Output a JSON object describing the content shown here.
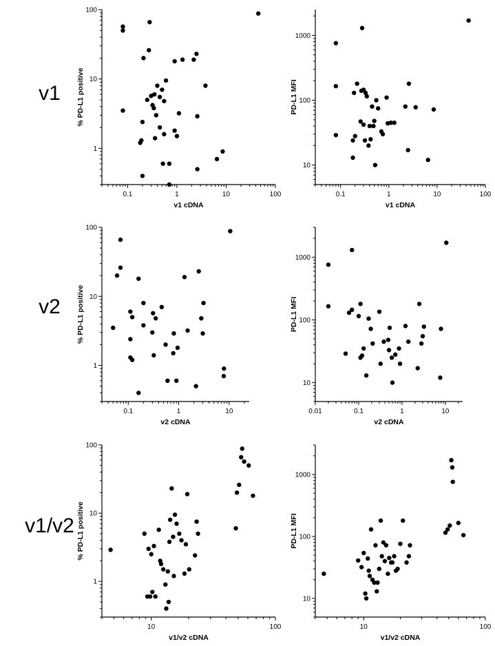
{
  "row_labels": [
    "v1",
    "v2",
    "v1/v2"
  ],
  "chart_data": [
    {
      "type": "scatter",
      "xlabel": "v1 cDNA",
      "ylabel": "% PD-L1 positive",
      "xscale": "log",
      "yscale": "log",
      "xlim": [
        0.03,
        100
      ],
      "ylim": [
        0.3,
        100
      ],
      "xticks": [
        0.1,
        1,
        10,
        100
      ],
      "xticklabels": [
        "0.1",
        "1",
        "10",
        "100"
      ],
      "yticks": [
        1,
        10,
        100
      ],
      "yticklabels": [
        "1",
        "10",
        "100"
      ],
      "x": [
        0.08,
        0.08,
        0.28,
        0.08,
        0.27,
        0.21,
        0.3,
        0.25,
        0.2,
        0.32,
        0.4,
        0.45,
        0.5,
        0.55,
        0.6,
        0.9,
        0.9,
        0.7,
        1.0,
        1.1,
        1.3,
        2.2,
        2.5,
        2.6,
        3.8,
        0.34,
        0.36,
        0.45,
        0.52,
        0.18,
        0.19,
        0.2,
        0.55,
        0.7,
        2.6,
        6.5,
        8.5,
        45,
        0.35,
        0.38
      ],
      "y": [
        57,
        50,
        66,
        3.5,
        26,
        20,
        5.7,
        5.0,
        2.4,
        4.2,
        8.0,
        5.5,
        7.0,
        4.8,
        9.5,
        18,
        1.8,
        0.6,
        1.5,
        3.2,
        19,
        19,
        23,
        2.9,
        8.0,
        3.8,
        1.4,
        2.0,
        0.6,
        1.2,
        1.3,
        0.4,
        1.6,
        0.3,
        0.5,
        0.7,
        0.9,
        88,
        6.0,
        3.0
      ]
    },
    {
      "type": "scatter",
      "xlabel": "v1 cDNA",
      "ylabel": "PD-L1 MFI",
      "xscale": "log",
      "yscale": "log",
      "xlim": [
        0.03,
        100
      ],
      "ylim": [
        5,
        2500
      ],
      "xticks": [
        0.1,
        1,
        10,
        100
      ],
      "xticklabels": [
        "0.1",
        "1",
        "10",
        "100"
      ],
      "yticks": [
        10,
        100,
        1000
      ],
      "yticklabels": [
        "10",
        "100",
        "1000"
      ],
      "x": [
        0.08,
        0.08,
        0.08,
        0.28,
        0.18,
        0.2,
        0.22,
        0.27,
        0.3,
        0.33,
        0.35,
        0.4,
        0.45,
        0.55,
        0.6,
        0.75,
        0.9,
        1.1,
        1.3,
        2.2,
        2.6,
        3.6,
        8.5,
        45,
        0.18,
        0.19,
        0.26,
        0.3,
        0.32,
        0.38,
        0.42,
        0.48,
        0.5,
        0.52,
        0.7,
        0.95,
        2.5,
        6.5
      ],
      "y": [
        760,
        165,
        29,
        1300,
        24,
        28,
        180,
        140,
        145,
        130,
        115,
        40,
        80,
        100,
        75,
        30,
        110,
        45,
        45,
        80,
        180,
        78,
        72,
        1700,
        13,
        130,
        47,
        42,
        24,
        20,
        25,
        40,
        48,
        10,
        33,
        44,
        17,
        12
      ]
    },
    {
      "type": "scatter",
      "xlabel": "v2 cDNA",
      "ylabel": "% PD-L1 positive",
      "xscale": "log",
      "yscale": "log",
      "xlim": [
        0.03,
        25
      ],
      "ylim": [
        0.3,
        100
      ],
      "xticks": [
        0.1,
        1,
        10
      ],
      "xticklabels": [
        "0.1",
        "1",
        "10"
      ],
      "yticks": [
        1,
        10,
        100
      ],
      "yticklabels": [
        "1",
        "10",
        "100"
      ],
      "x": [
        0.07,
        0.06,
        0.07,
        0.05,
        0.16,
        0.11,
        0.12,
        0.11,
        0.11,
        0.12,
        0.2,
        0.16,
        0.2,
        0.31,
        0.32,
        0.35,
        0.46,
        0.55,
        0.6,
        0.78,
        0.8,
        0.9,
        0.95,
        1.3,
        1.5,
        2.2,
        2.5,
        2.8,
        3.0,
        3.1,
        7.8,
        7.9,
        10.5,
        0.3
      ],
      "y": [
        66,
        20,
        26,
        3.5,
        18,
        6.0,
        5.0,
        2.4,
        1.3,
        1.2,
        8.0,
        0.4,
        3.8,
        5.7,
        1.4,
        4.8,
        7.0,
        2.0,
        0.6,
        1.5,
        2.9,
        0.6,
        1.8,
        19,
        3.2,
        0.5,
        23,
        4.8,
        2.9,
        8.0,
        0.7,
        0.9,
        88,
        3.0
      ]
    },
    {
      "type": "scatter",
      "xlabel": "v2 cDNA",
      "ylabel": "PD-L1 MFI",
      "xscale": "log",
      "yscale": "log",
      "xlim": [
        0.01,
        25
      ],
      "ylim": [
        5,
        3000
      ],
      "xticks": [
        0.01,
        0.1,
        1,
        10
      ],
      "xticklabels": [
        "0.01",
        "0.1",
        "1",
        "10"
      ],
      "yticks": [
        10,
        100,
        1000
      ],
      "yticklabels": [
        "10",
        "100",
        "1000"
      ],
      "x": [
        0.02,
        0.02,
        0.07,
        0.05,
        0.06,
        0.07,
        0.1,
        0.11,
        0.11,
        0.12,
        0.13,
        0.15,
        0.17,
        0.19,
        0.21,
        0.3,
        0.32,
        0.38,
        0.48,
        0.5,
        0.52,
        0.58,
        0.6,
        0.7,
        0.85,
        0.9,
        1.2,
        1.4,
        2.3,
        2.5,
        2.8,
        3.0,
        3.2,
        7.6,
        7.9,
        10.5
      ],
      "y": [
        760,
        165,
        1300,
        29,
        130,
        145,
        115,
        180,
        25,
        27,
        35,
        13,
        105,
        72,
        42,
        135,
        20,
        45,
        48,
        33,
        75,
        25,
        10,
        28,
        35,
        20,
        80,
        45,
        17,
        180,
        42,
        55,
        78,
        12,
        72,
        1700
      ]
    },
    {
      "type": "scatter",
      "xlabel": "v1/v2 cDNA",
      "ylabel": "% PD-L1 positive",
      "xscale": "log",
      "yscale": "log",
      "xlim": [
        4,
        100
      ],
      "ylim": [
        0.3,
        100
      ],
      "xticks": [
        10,
        100
      ],
      "xticklabels": [
        "10",
        "100"
      ],
      "yticks": [
        1,
        10,
        100
      ],
      "yticklabels": [
        "1",
        "10",
        "100"
      ],
      "x": [
        4.7,
        8.8,
        9.3,
        9.5,
        9.8,
        10.2,
        10.5,
        10.8,
        11.5,
        11.8,
        12.0,
        12.5,
        13.0,
        13.2,
        13.6,
        13.8,
        14.2,
        14.6,
        15.0,
        15.2,
        15.5,
        16.0,
        16.8,
        17.5,
        18.5,
        19.0,
        19.5,
        20.2,
        22.5,
        23.2,
        23.8,
        48.0,
        49.0,
        51.0,
        53.0,
        54.0,
        56.0,
        61.0,
        66.0,
        14.0,
        10.0
      ],
      "y": [
        2.9,
        5.0,
        0.6,
        3.0,
        0.6,
        0.7,
        3.3,
        0.6,
        5.7,
        2.0,
        1.8,
        1.5,
        0.9,
        0.4,
        1.4,
        0.5,
        8.0,
        23,
        4.5,
        1.2,
        9.5,
        7.0,
        5.0,
        4.0,
        1.3,
        3.5,
        19,
        1.5,
        2.4,
        7.5,
        5.0,
        6.0,
        20,
        26,
        66,
        88,
        57,
        50,
        18,
        3.8,
        2.5
      ]
    },
    {
      "type": "scatter",
      "xlabel": "v1/v2 cDNA",
      "ylabel": "PD-L1 MFI",
      "xscale": "log",
      "yscale": "log",
      "xlim": [
        4,
        100
      ],
      "ylim": [
        5,
        3000
      ],
      "xticks": [
        10,
        100
      ],
      "xticklabels": [
        "10",
        "100"
      ],
      "yticks": [
        10,
        100,
        1000
      ],
      "yticklabels": [
        "10",
        "100",
        "1000"
      ],
      "x": [
        4.7,
        9.0,
        9.6,
        10.0,
        10.3,
        10.5,
        10.8,
        11.0,
        11.2,
        11.5,
        11.8,
        12.2,
        12.5,
        12.8,
        13.0,
        13.4,
        13.8,
        14.1,
        14.5,
        14.9,
        15.3,
        15.8,
        16.2,
        16.8,
        17.2,
        17.8,
        18.4,
        19.0,
        20.0,
        21.0,
        22.5,
        23.5,
        24.0,
        47.0,
        49.0,
        51.0,
        52.5,
        53.5,
        54.0,
        60.0,
        66.0
      ],
      "y": [
        25,
        41,
        32,
        54,
        12,
        10,
        44,
        28,
        23,
        130,
        20,
        18,
        72,
        13,
        18,
        30,
        180,
        48,
        80,
        40,
        72,
        25,
        45,
        38,
        38,
        48,
        28,
        30,
        76,
        180,
        38,
        48,
        72,
        115,
        130,
        150,
        1700,
        1300,
        760,
        165,
        105
      ]
    }
  ]
}
